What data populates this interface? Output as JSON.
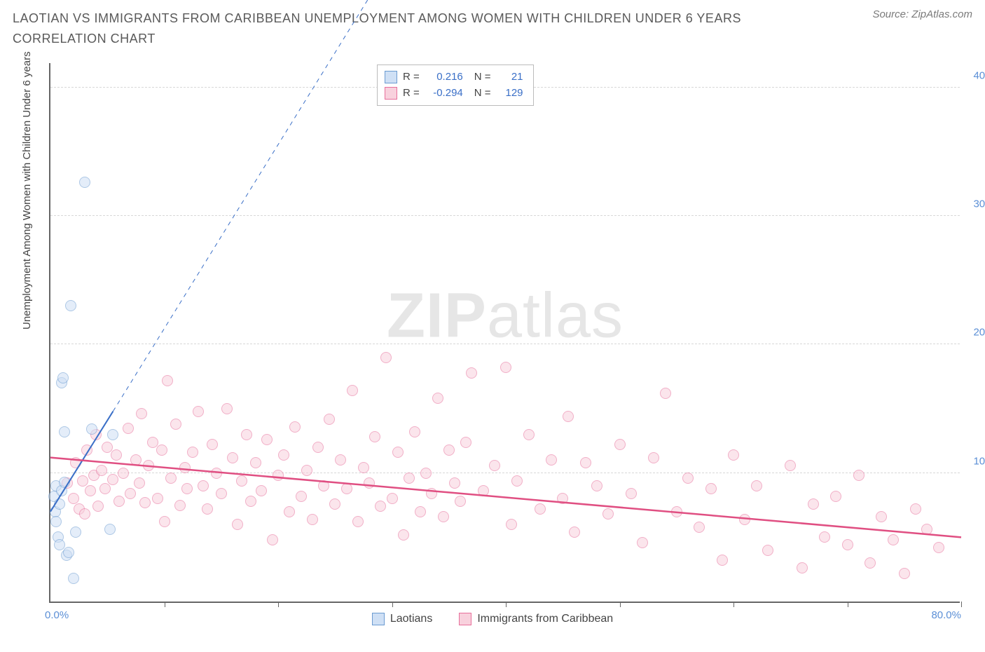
{
  "title": "LAOTIAN VS IMMIGRANTS FROM CARIBBEAN UNEMPLOYMENT AMONG WOMEN WITH CHILDREN UNDER 6 YEARS CORRELATION CHART",
  "source_label": "Source: ZipAtlas.com",
  "watermark": {
    "bold": "ZIP",
    "light": "atlas"
  },
  "y_axis_title": "Unemployment Among Women with Children Under 6 years",
  "chart": {
    "type": "scatter",
    "background_color": "#ffffff",
    "grid_color": "#d8d8d8",
    "axis_color": "#666666",
    "xlim": [
      0,
      80
    ],
    "ylim": [
      0,
      42
    ],
    "x_ticks": [
      0,
      10,
      20,
      30,
      40,
      50,
      60,
      70,
      80
    ],
    "x_tick_labels": {
      "first": "0.0%",
      "last": "80.0%"
    },
    "y_ticks": [
      {
        "v": 10,
        "label": "10.0%"
      },
      {
        "v": 20,
        "label": "20.0%"
      },
      {
        "v": 30,
        "label": "30.0%"
      },
      {
        "v": 40,
        "label": "40.0%"
      }
    ],
    "marker_radius": 8,
    "marker_border_width": 1,
    "series": [
      {
        "name": "Laotians",
        "fill": "#cfe0f5",
        "stroke": "#6b9bd1",
        "fill_opacity": 0.55,
        "r_value": "0.216",
        "n_value": "21",
        "trend": {
          "x1": 0,
          "y1": 7.0,
          "x2": 5.5,
          "y2": 14.8,
          "dash_x2": 28,
          "dash_y2": 47,
          "color": "#3a6fc7",
          "width": 2
        },
        "points": [
          [
            0.3,
            8.2
          ],
          [
            0.4,
            7.0
          ],
          [
            0.5,
            9.0
          ],
          [
            0.5,
            6.2
          ],
          [
            0.7,
            5.0
          ],
          [
            0.8,
            4.4
          ],
          [
            0.8,
            7.6
          ],
          [
            1.0,
            8.6
          ],
          [
            1.0,
            17.0
          ],
          [
            1.1,
            17.4
          ],
          [
            1.2,
            13.2
          ],
          [
            1.2,
            9.3
          ],
          [
            1.4,
            3.6
          ],
          [
            1.6,
            3.8
          ],
          [
            1.8,
            23.0
          ],
          [
            2.0,
            1.8
          ],
          [
            2.2,
            5.4
          ],
          [
            3.0,
            32.6
          ],
          [
            3.6,
            13.4
          ],
          [
            5.2,
            5.6
          ],
          [
            5.5,
            13.0
          ]
        ]
      },
      {
        "name": "Immigrants from Caribbean",
        "fill": "#f8d1dd",
        "stroke": "#e76f9b",
        "fill_opacity": 0.55,
        "r_value": "-0.294",
        "n_value": "129",
        "trend": {
          "x1": 0,
          "y1": 11.2,
          "x2": 80,
          "y2": 5.0,
          "color": "#e04f82",
          "width": 2.5
        },
        "points": [
          [
            1.5,
            9.2
          ],
          [
            2.0,
            8.0
          ],
          [
            2.2,
            10.8
          ],
          [
            2.5,
            7.2
          ],
          [
            2.8,
            9.4
          ],
          [
            3.0,
            6.8
          ],
          [
            3.2,
            11.8
          ],
          [
            3.5,
            8.6
          ],
          [
            3.8,
            9.8
          ],
          [
            4.0,
            13.0
          ],
          [
            4.2,
            7.4
          ],
          [
            4.5,
            10.2
          ],
          [
            4.8,
            8.8
          ],
          [
            5.0,
            12.0
          ],
          [
            5.5,
            9.5
          ],
          [
            5.8,
            11.4
          ],
          [
            6.0,
            7.8
          ],
          [
            6.4,
            10.0
          ],
          [
            6.8,
            13.5
          ],
          [
            7.0,
            8.4
          ],
          [
            7.5,
            11.0
          ],
          [
            7.8,
            9.2
          ],
          [
            8.0,
            14.6
          ],
          [
            8.3,
            7.7
          ],
          [
            8.6,
            10.6
          ],
          [
            9.0,
            12.4
          ],
          [
            9.4,
            8.0
          ],
          [
            9.8,
            11.8
          ],
          [
            10.0,
            6.2
          ],
          [
            10.3,
            17.2
          ],
          [
            10.6,
            9.6
          ],
          [
            11.0,
            13.8
          ],
          [
            11.4,
            7.5
          ],
          [
            11.8,
            10.4
          ],
          [
            12.0,
            8.8
          ],
          [
            12.5,
            11.6
          ],
          [
            13.0,
            14.8
          ],
          [
            13.4,
            9.0
          ],
          [
            13.8,
            7.2
          ],
          [
            14.2,
            12.2
          ],
          [
            14.6,
            10.0
          ],
          [
            15.0,
            8.4
          ],
          [
            15.5,
            15.0
          ],
          [
            16.0,
            11.2
          ],
          [
            16.4,
            6.0
          ],
          [
            16.8,
            9.4
          ],
          [
            17.2,
            13.0
          ],
          [
            17.6,
            7.8
          ],
          [
            18.0,
            10.8
          ],
          [
            18.5,
            8.6
          ],
          [
            19.0,
            12.6
          ],
          [
            19.5,
            4.8
          ],
          [
            20.0,
            9.8
          ],
          [
            20.5,
            11.4
          ],
          [
            21.0,
            7.0
          ],
          [
            21.5,
            13.6
          ],
          [
            22.0,
            8.2
          ],
          [
            22.5,
            10.2
          ],
          [
            23.0,
            6.4
          ],
          [
            23.5,
            12.0
          ],
          [
            24.0,
            9.0
          ],
          [
            24.5,
            14.2
          ],
          [
            25.0,
            7.6
          ],
          [
            25.5,
            11.0
          ],
          [
            26.0,
            8.8
          ],
          [
            26.5,
            16.4
          ],
          [
            27.0,
            6.2
          ],
          [
            27.5,
            10.4
          ],
          [
            28.0,
            9.2
          ],
          [
            28.5,
            12.8
          ],
          [
            29.0,
            7.4
          ],
          [
            29.5,
            19.0
          ],
          [
            30.0,
            8.0
          ],
          [
            30.5,
            11.6
          ],
          [
            31.0,
            5.2
          ],
          [
            31.5,
            9.6
          ],
          [
            32.0,
            13.2
          ],
          [
            32.5,
            7.0
          ],
          [
            33.0,
            10.0
          ],
          [
            33.5,
            8.4
          ],
          [
            34.0,
            15.8
          ],
          [
            34.5,
            6.6
          ],
          [
            35.0,
            11.8
          ],
          [
            35.5,
            9.2
          ],
          [
            36.0,
            7.8
          ],
          [
            36.5,
            12.4
          ],
          [
            37.0,
            17.8
          ],
          [
            38.0,
            8.6
          ],
          [
            39.0,
            10.6
          ],
          [
            40.0,
            18.2
          ],
          [
            40.5,
            6.0
          ],
          [
            41.0,
            9.4
          ],
          [
            42.0,
            13.0
          ],
          [
            43.0,
            7.2
          ],
          [
            44.0,
            11.0
          ],
          [
            45.0,
            8.0
          ],
          [
            45.5,
            14.4
          ],
          [
            46.0,
            5.4
          ],
          [
            47.0,
            10.8
          ],
          [
            48.0,
            9.0
          ],
          [
            49.0,
            6.8
          ],
          [
            50.0,
            12.2
          ],
          [
            51.0,
            8.4
          ],
          [
            52.0,
            4.6
          ],
          [
            53.0,
            11.2
          ],
          [
            54.0,
            16.2
          ],
          [
            55.0,
            7.0
          ],
          [
            56.0,
            9.6
          ],
          [
            57.0,
            5.8
          ],
          [
            58.0,
            8.8
          ],
          [
            59.0,
            3.2
          ],
          [
            60.0,
            11.4
          ],
          [
            61.0,
            6.4
          ],
          [
            62.0,
            9.0
          ],
          [
            63.0,
            4.0
          ],
          [
            65.0,
            10.6
          ],
          [
            66.0,
            2.6
          ],
          [
            67.0,
            7.6
          ],
          [
            68.0,
            5.0
          ],
          [
            69.0,
            8.2
          ],
          [
            70.0,
            4.4
          ],
          [
            71.0,
            9.8
          ],
          [
            72.0,
            3.0
          ],
          [
            73.0,
            6.6
          ],
          [
            74.0,
            4.8
          ],
          [
            75.0,
            2.2
          ],
          [
            76.0,
            7.2
          ],
          [
            77.0,
            5.6
          ],
          [
            78.0,
            4.2
          ]
        ]
      }
    ]
  },
  "stats_legend": {
    "r_label": "R =",
    "n_label": "N ="
  },
  "bottom_legend": [
    {
      "label": "Laotians",
      "fill": "#cfe0f5",
      "stroke": "#6b9bd1"
    },
    {
      "label": "Immigrants from Caribbean",
      "fill": "#f8d1dd",
      "stroke": "#e76f9b"
    }
  ]
}
